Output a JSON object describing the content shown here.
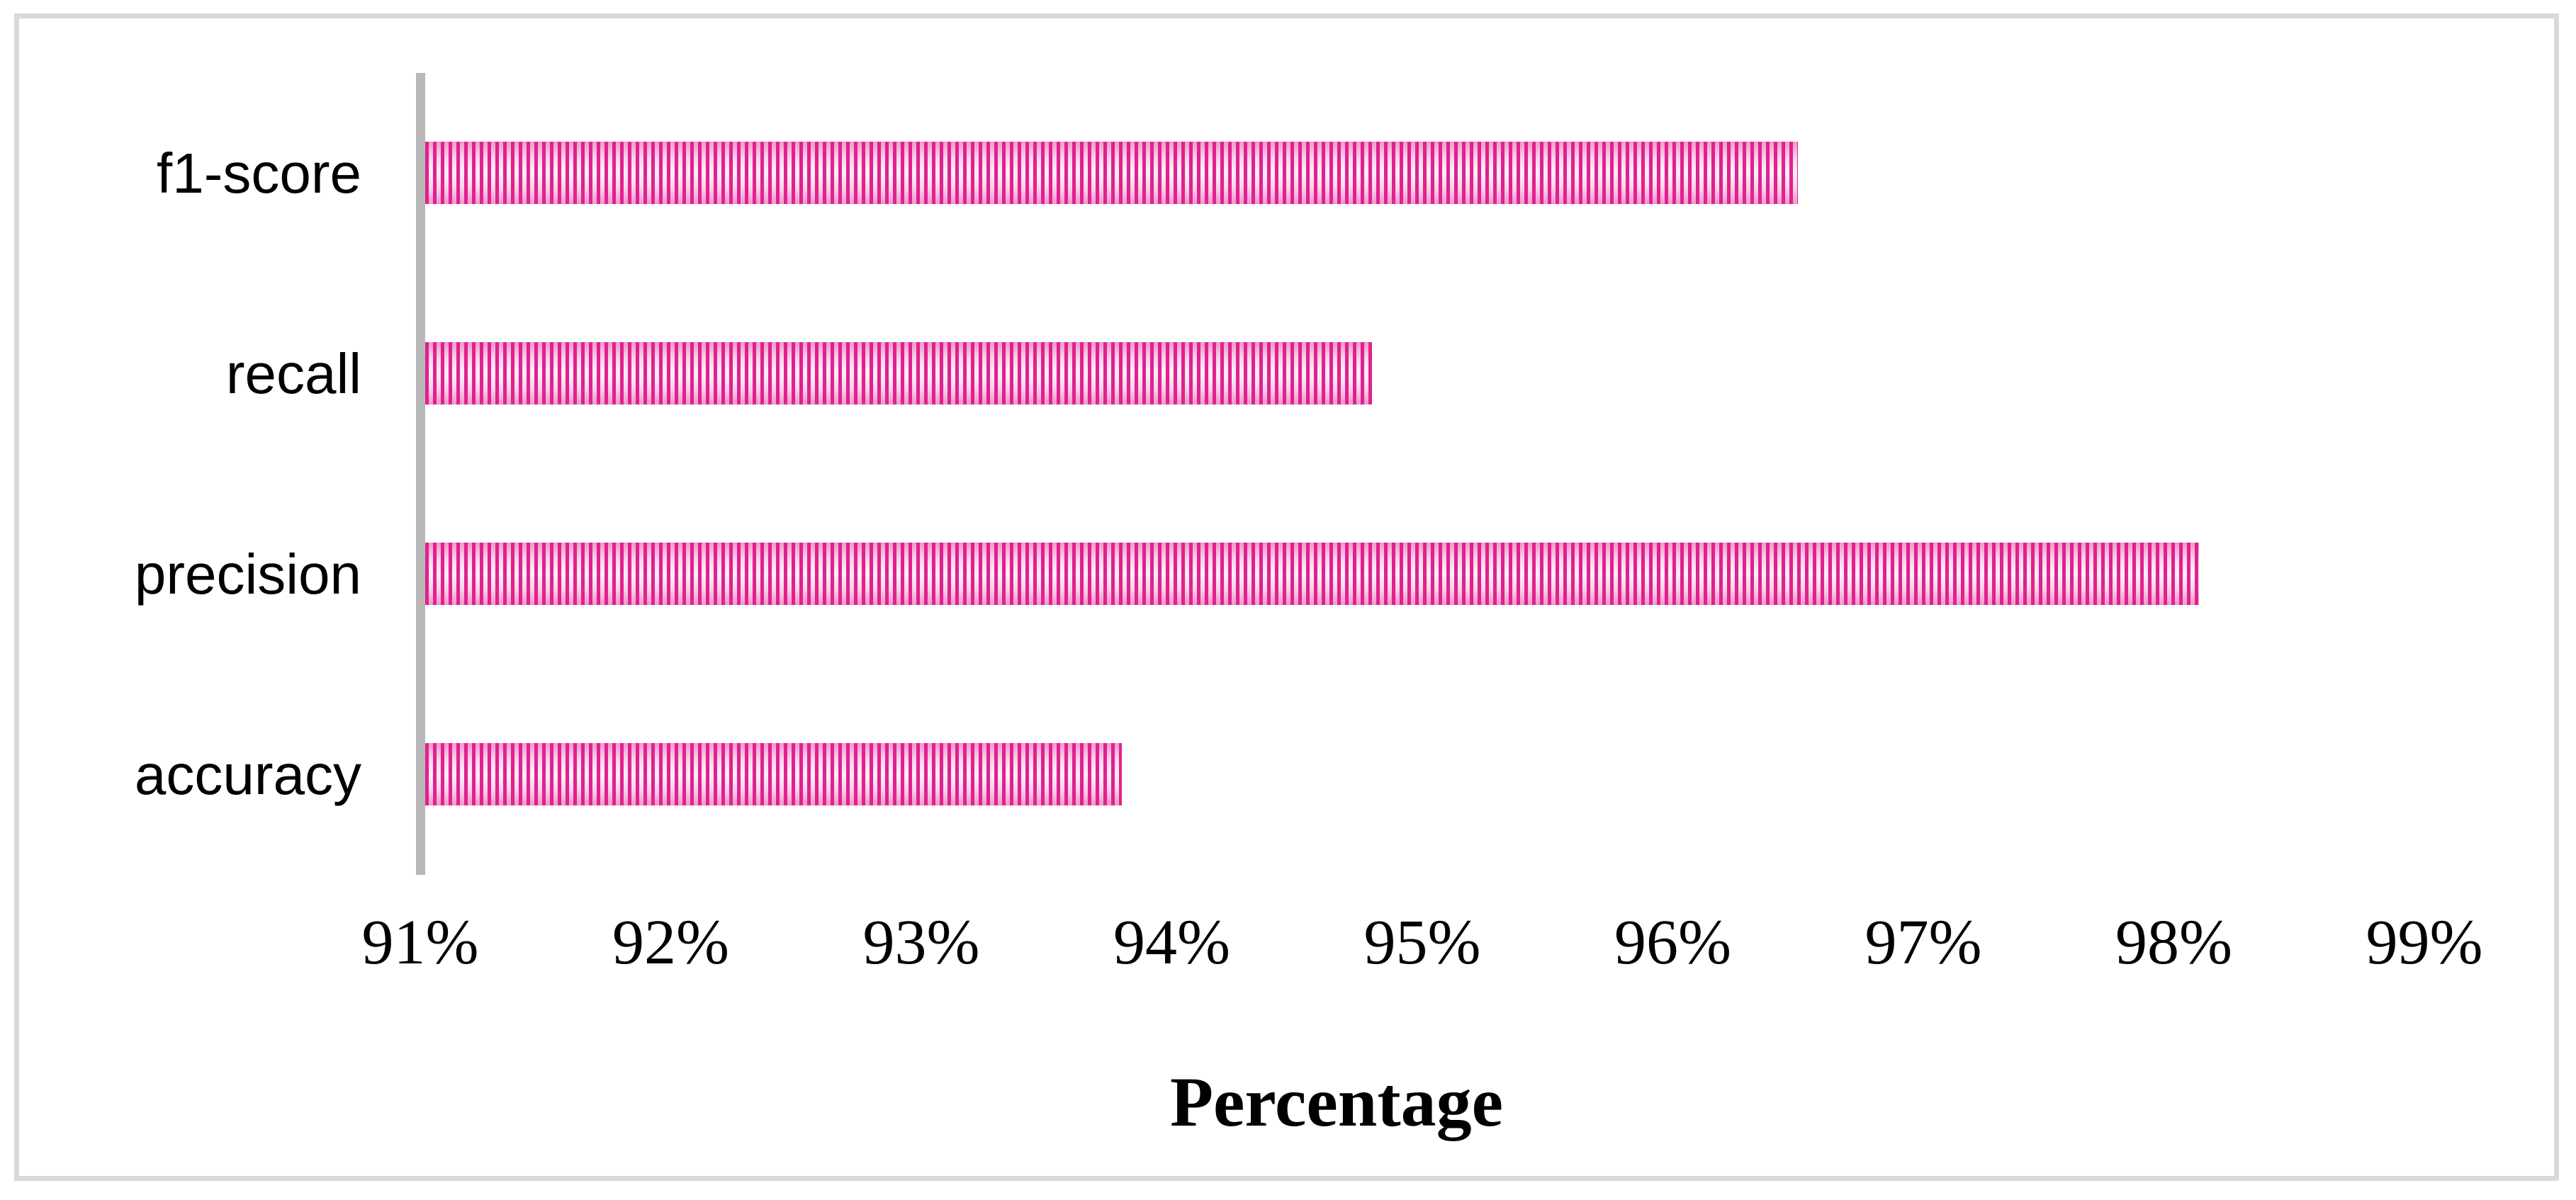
{
  "chart_data": {
    "type": "bar",
    "orientation": "horizontal",
    "title": "",
    "xlabel": "Percentage",
    "ylabel": "",
    "category_order": "top-to-bottom",
    "categories": [
      "f1-score",
      "recall",
      "precision",
      "accuracy"
    ],
    "values": [
      96.5,
      94.8,
      98.1,
      93.8
    ],
    "unit": "%",
    "xlim": [
      91,
      99
    ],
    "x_ticks": [
      "91%",
      "92%",
      "93%",
      "94%",
      "95%",
      "96%",
      "97%",
      "98%",
      "99%"
    ],
    "x_tick_values": [
      91,
      92,
      93,
      94,
      95,
      96,
      97,
      98,
      99
    ],
    "grid": false,
    "legend": false,
    "bar_pattern": "vertical-stripes"
  },
  "colors": {
    "bar_stripe": "#e0218f",
    "bar_light": "#fdeff8",
    "bar_edge": "#f195c9",
    "axis_line": "#b8b8b8",
    "frame_border": "#d9d9d9",
    "text": "#000000",
    "background": "#ffffff"
  }
}
